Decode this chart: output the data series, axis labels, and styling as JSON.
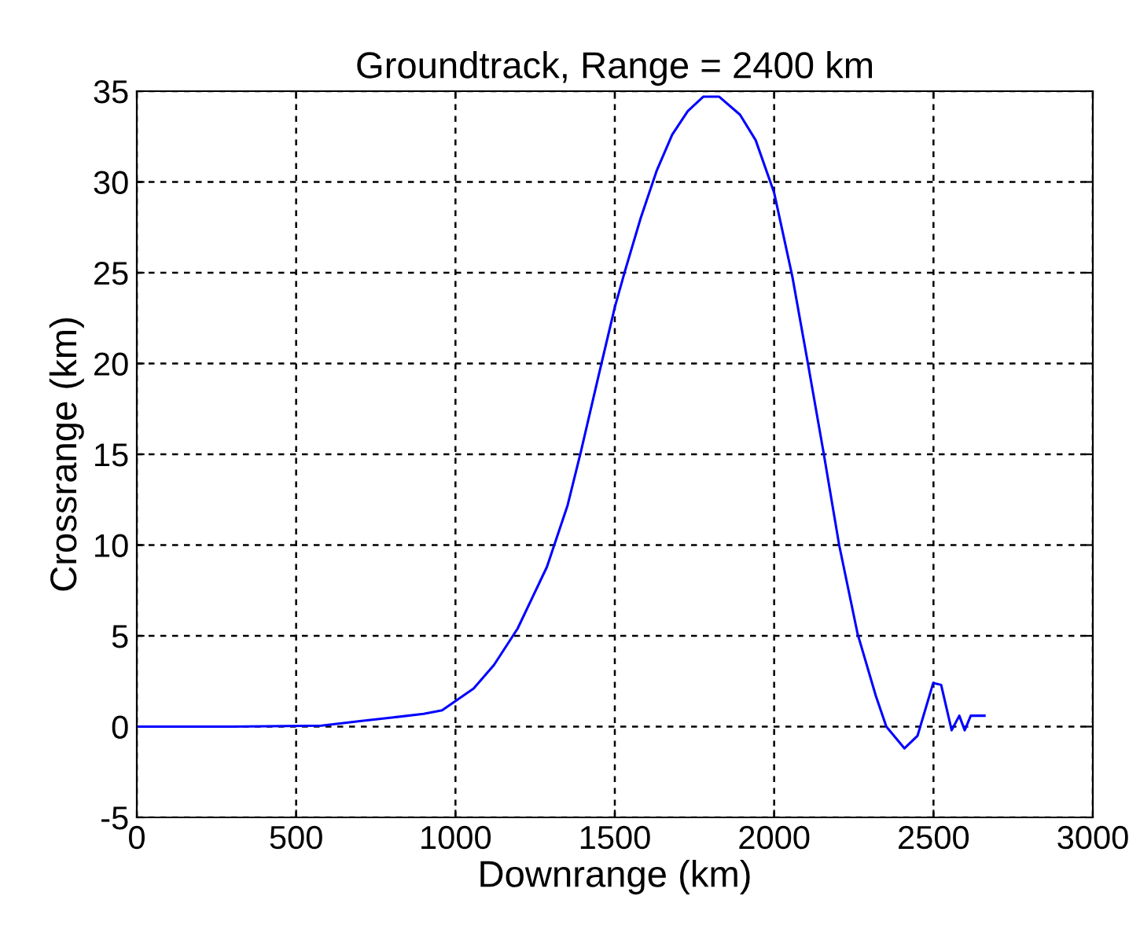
{
  "chart_data": {
    "type": "line",
    "title": "Groundtrack, Range = 2400 km",
    "xlabel": "Downrange (km)",
    "ylabel": "Crossrange (km)",
    "xlim": [
      0,
      3000
    ],
    "xticks": [
      0,
      500,
      1000,
      1500,
      2000,
      2500,
      3000
    ],
    "ylim": [
      -5,
      35
    ],
    "yticks": [
      -5,
      0,
      5,
      10,
      15,
      20,
      25,
      30,
      35
    ],
    "grid": true,
    "line_style": "solid",
    "marker": "none",
    "series": [
      {
        "color": "#0000ff",
        "x": [
          0,
          300,
          580,
          700,
          800,
          900,
          958,
          1057,
          1121,
          1195,
          1287,
          1352,
          1393,
          1450,
          1500,
          1532,
          1581,
          1631,
          1680,
          1729,
          1778,
          1827,
          1893,
          1942,
          2000,
          2057,
          2106,
          2155,
          2204,
          2262,
          2319,
          2352,
          2409,
          2450,
          2499,
          2524,
          2557,
          2581,
          2598,
          2617,
          2660
        ],
        "values": [
          0,
          0,
          0.05,
          0.3,
          0.5,
          0.7,
          0.9,
          2.1,
          3.4,
          5.4,
          8.8,
          12.2,
          15.1,
          19.4,
          23.1,
          25.1,
          28,
          30.6,
          32.6,
          33.9,
          34.7,
          34.7,
          33.7,
          32.3,
          29.4,
          24.8,
          20,
          15.1,
          10,
          5.1,
          1.7,
          0,
          -1.2,
          -0.5,
          2.4,
          2.3,
          -0.2,
          0.6,
          -0.2,
          0.6,
          0.6
        ]
      }
    ]
  }
}
